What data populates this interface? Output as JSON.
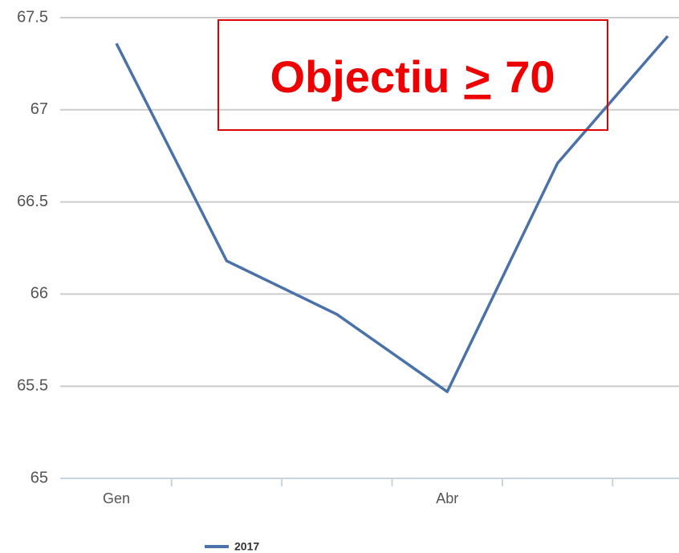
{
  "chart_data": {
    "type": "line",
    "categories": [
      "Gen",
      null,
      null,
      "Abr",
      null,
      null
    ],
    "series": [
      {
        "name": "2017",
        "color": "#4a72a8",
        "values": [
          67.36,
          66.18,
          65.89,
          65.47,
          66.71,
          67.4
        ]
      }
    ],
    "ylim": [
      65,
      67.5
    ],
    "yticks": [
      65,
      65.5,
      66,
      66.5,
      67,
      67.5
    ],
    "grid": true,
    "legend": "bottom",
    "annotation": [
      "Objectiu",
      ">",
      "70"
    ]
  }
}
